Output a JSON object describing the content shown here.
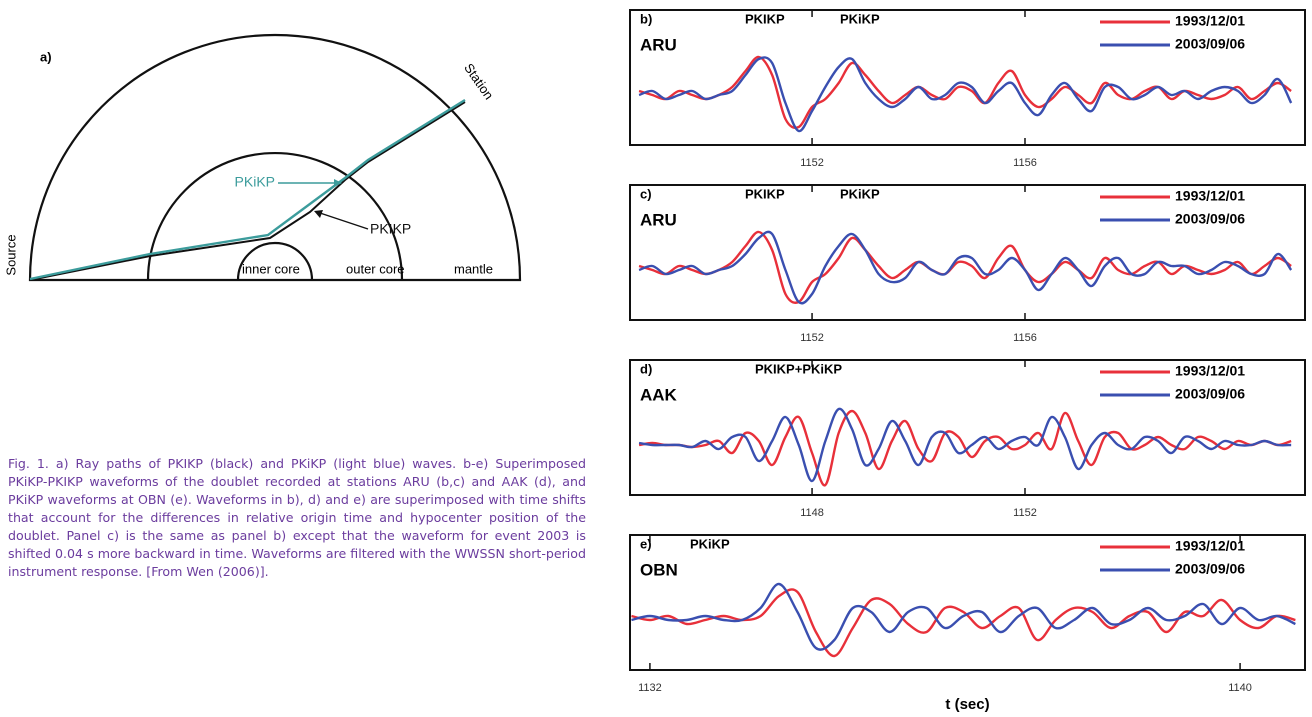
{
  "diagram": {
    "label": "a)",
    "rays": [
      "PKiKP",
      "PKIKP"
    ],
    "regions": [
      "inner core",
      "outer core",
      "mantle"
    ],
    "source": "Source",
    "station": "Station"
  },
  "caption": "Fig. 1. a) Ray paths of PKIKP (black) and PKiKP (light blue) waves. b-e) Superimposed PKiKP-PKIKP waveforms of the doublet recorded at stations ARU (b,c) and AAK (d), and PKiKP waveforms at OBN (e). Waveforms in b), d) and e) are superimposed with time shifts that account for the differences in relative origin time and hypocenter position of the doublet. Panel c) is the same as panel b) except that the waveform for event 2003 is shifted 0.04 s more backward in time. Waveforms are filtered with the WWSSN short-period instrument response. [From Wen (2006)].",
  "chart_data": [
    {
      "type": "line",
      "panel": "b)",
      "station": "ARU",
      "annotations": [
        "PKIKP",
        "PKiKP"
      ],
      "x": [
        1148.75,
        1149,
        1149.25,
        1149.5,
        1149.75,
        1150,
        1150.25,
        1150.5,
        1150.75,
        1151,
        1151.25,
        1151.5,
        1151.75,
        1152,
        1152.25,
        1152.5,
        1152.75,
        1153,
        1153.25,
        1153.5,
        1153.75,
        1154,
        1154.25,
        1154.5,
        1154.75,
        1155,
        1155.25,
        1155.5,
        1155.75,
        1156,
        1156.25,
        1156.5,
        1156.75,
        1157,
        1157.25,
        1157.5,
        1157.75,
        1158,
        1158.25,
        1158.5,
        1158.75,
        1159,
        1159.25,
        1159.5,
        1159.75,
        1160,
        1160.25,
        1160.5,
        1160.75,
        1161
      ],
      "series": [
        {
          "name": "1993/12/01",
          "color": "#e8303a",
          "values": [
            0.1,
            0.0,
            -0.1,
            0.1,
            0.0,
            -0.1,
            0.0,
            0.2,
            0.6,
            0.95,
            0.5,
            -0.6,
            -0.8,
            -0.3,
            -0.1,
            0.3,
            0.8,
            0.5,
            0.1,
            -0.2,
            0.0,
            0.2,
            0.0,
            -0.1,
            0.2,
            0.1,
            -0.2,
            0.3,
            0.6,
            0.0,
            -0.3,
            -0.1,
            0.2,
            0.0,
            -0.2,
            0.3,
            0.0,
            -0.1,
            0.1,
            0.2,
            -0.1,
            0.1,
            0.0,
            -0.1,
            0.0,
            0.2,
            -0.1,
            0.1,
            0.3,
            0.1
          ]
        },
        {
          "name": "2003/09/06",
          "color": "#3a4fb0",
          "values": [
            0.0,
            0.1,
            -0.1,
            0.0,
            0.1,
            -0.1,
            0.0,
            0.1,
            0.5,
            0.9,
            0.8,
            -0.2,
            -0.9,
            -0.4,
            0.2,
            0.7,
            0.9,
            0.3,
            -0.1,
            -0.3,
            -0.1,
            0.2,
            -0.1,
            0.0,
            0.3,
            0.2,
            -0.2,
            0.1,
            0.3,
            -0.2,
            -0.5,
            0.0,
            0.3,
            -0.1,
            -0.4,
            0.2,
            0.2,
            -0.1,
            0.0,
            0.2,
            0.0,
            0.1,
            -0.1,
            0.1,
            0.2,
            0.1,
            -0.2,
            0.0,
            0.4,
            -0.2
          ]
        }
      ],
      "xlim": [
        1148.58,
        1161.26
      ],
      "xticks": [
        1152,
        1156
      ]
    },
    {
      "type": "line",
      "panel": "c)",
      "station": "ARU",
      "annotations": [
        "PKIKP",
        "PKiKP"
      ],
      "x": [
        1148.75,
        1149,
        1149.25,
        1149.5,
        1149.75,
        1150,
        1150.25,
        1150.5,
        1150.75,
        1151,
        1151.25,
        1151.5,
        1151.75,
        1152,
        1152.25,
        1152.5,
        1152.75,
        1153,
        1153.25,
        1153.5,
        1153.75,
        1154,
        1154.25,
        1154.5,
        1154.75,
        1155,
        1155.25,
        1155.5,
        1155.75,
        1156,
        1156.25,
        1156.5,
        1156.75,
        1157,
        1157.25,
        1157.5,
        1157.75,
        1158,
        1158.25,
        1158.5,
        1158.75,
        1159,
        1159.25,
        1159.5,
        1159.75,
        1160,
        1160.25,
        1160.5,
        1160.75,
        1161
      ],
      "series": [
        {
          "name": "1993/12/01",
          "color": "#e8303a",
          "values": [
            0.1,
            0.0,
            -0.1,
            0.1,
            0.0,
            -0.1,
            0.0,
            0.2,
            0.6,
            0.95,
            0.5,
            -0.6,
            -0.8,
            -0.3,
            -0.1,
            0.3,
            0.8,
            0.5,
            0.1,
            -0.2,
            0.0,
            0.2,
            0.0,
            -0.1,
            0.2,
            0.1,
            -0.2,
            0.3,
            0.6,
            0.0,
            -0.3,
            -0.1,
            0.2,
            0.0,
            -0.2,
            0.3,
            0.0,
            -0.1,
            0.1,
            0.2,
            -0.1,
            0.1,
            0.0,
            -0.1,
            0.0,
            0.2,
            -0.1,
            0.1,
            0.3,
            0.1
          ]
        },
        {
          "name": "2003/09/06",
          "color": "#3a4fb0",
          "values": [
            0.0,
            0.1,
            -0.1,
            0.0,
            0.1,
            -0.1,
            0.0,
            0.1,
            0.4,
            0.8,
            0.9,
            0.0,
            -0.8,
            -0.6,
            0.1,
            0.6,
            0.9,
            0.5,
            -0.1,
            -0.3,
            -0.2,
            0.2,
            0.0,
            -0.1,
            0.3,
            0.3,
            -0.1,
            0.0,
            0.3,
            0.0,
            -0.5,
            -0.1,
            0.3,
            0.0,
            -0.4,
            0.1,
            0.3,
            -0.1,
            -0.1,
            0.2,
            0.1,
            0.1,
            -0.1,
            0.0,
            0.2,
            0.1,
            -0.1,
            -0.1,
            0.4,
            0.0
          ]
        }
      ],
      "xlim": [
        1148.58,
        1161.26
      ],
      "xticks": [
        1152,
        1156
      ]
    },
    {
      "type": "line",
      "panel": "d)",
      "station": "AAK",
      "annotations": [
        "PKIKP+PKiKP"
      ],
      "x": [
        1144.75,
        1145,
        1145.25,
        1145.5,
        1145.75,
        1146,
        1146.25,
        1146.5,
        1146.75,
        1147,
        1147.25,
        1147.5,
        1147.75,
        1148,
        1148.25,
        1148.5,
        1148.75,
        1149,
        1149.25,
        1149.5,
        1149.75,
        1150,
        1150.25,
        1150.5,
        1150.75,
        1151,
        1151.25,
        1151.5,
        1151.75,
        1152,
        1152.25,
        1152.5,
        1152.75,
        1153,
        1153.25,
        1153.5,
        1153.75,
        1154,
        1154.25,
        1154.5,
        1154.75,
        1155,
        1155.25,
        1155.5,
        1155.75,
        1156,
        1156.25,
        1156.5,
        1156.75,
        1157
      ],
      "series": [
        {
          "name": "1993/12/01",
          "color": "#e8303a",
          "values": [
            0.0,
            0.05,
            0.0,
            0.0,
            -0.05,
            0.0,
            0.1,
            -0.2,
            0.3,
            0.1,
            -0.5,
            0.2,
            0.7,
            -0.2,
            -1.0,
            0.3,
            0.85,
            0.3,
            -0.6,
            0.1,
            0.6,
            -0.1,
            -0.4,
            0.3,
            0.2,
            -0.3,
            0.1,
            0.2,
            -0.1,
            0.0,
            0.3,
            -0.1,
            0.8,
            0.1,
            -0.5,
            0.2,
            0.3,
            -0.1,
            0.0,
            0.2,
            0.0,
            -0.1,
            0.2,
            0.1,
            -0.1,
            0.1,
            0.0,
            0.1,
            0.0,
            0.1
          ]
        },
        {
          "name": "2003/09/06",
          "color": "#3a4fb0",
          "values": [
            0.05,
            0.0,
            0.0,
            0.0,
            -0.05,
            0.1,
            -0.1,
            0.2,
            0.2,
            -0.4,
            0.1,
            0.7,
            0.0,
            -0.9,
            0.1,
            0.9,
            0.4,
            -0.5,
            -0.1,
            0.6,
            0.1,
            -0.5,
            0.2,
            0.3,
            -0.2,
            0.0,
            0.2,
            -0.1,
            0.1,
            0.2,
            0.0,
            0.7,
            0.2,
            -0.6,
            0.0,
            0.3,
            0.0,
            -0.1,
            0.2,
            0.1,
            -0.2,
            0.2,
            0.1,
            -0.1,
            0.1,
            0.0,
            0.0,
            0.1,
            0.0,
            0.0
          ]
        }
      ],
      "xlim": [
        1144.58,
        1157.26
      ],
      "xticks": [
        1148,
        1152
      ]
    },
    {
      "type": "line",
      "panel": "e)",
      "station": "OBN",
      "annotations": [
        "PKiKP"
      ],
      "xlabel": "t (sec)",
      "x": [
        1131.75,
        1132,
        1132.25,
        1132.5,
        1132.75,
        1133,
        1133.25,
        1133.5,
        1133.75,
        1134,
        1134.25,
        1134.5,
        1134.75,
        1135,
        1135.25,
        1135.5,
        1135.75,
        1136,
        1136.25,
        1136.5,
        1136.75,
        1137,
        1137.25,
        1137.5,
        1137.75,
        1138,
        1138.25,
        1138.5,
        1138.75,
        1139,
        1139.25,
        1139.5,
        1139.75,
        1140,
        1140.25,
        1140.5,
        1140.75
      ],
      "series": [
        {
          "name": "1993/12/01",
          "color": "#e8303a",
          "values": [
            0.1,
            0.0,
            0.1,
            -0.1,
            0.0,
            0.1,
            0.0,
            0.1,
            0.6,
            0.7,
            -0.3,
            -0.9,
            -0.2,
            0.5,
            0.4,
            -0.1,
            -0.3,
            0.3,
            0.2,
            -0.2,
            0.1,
            0.3,
            -0.5,
            0.0,
            0.3,
            0.2,
            -0.2,
            0.1,
            0.2,
            -0.3,
            0.2,
            0.1,
            0.5,
            0.0,
            -0.2,
            0.1,
            0.0
          ]
        },
        {
          "name": "2003/09/06",
          "color": "#3a4fb0",
          "values": [
            0.0,
            0.1,
            0.0,
            0.0,
            0.1,
            0.0,
            0.0,
            0.3,
            0.9,
            0.2,
            -0.7,
            -0.5,
            0.3,
            0.2,
            -0.3,
            0.2,
            0.3,
            -0.2,
            0.1,
            0.2,
            -0.3,
            0.1,
            0.3,
            -0.2,
            0.0,
            0.3,
            -0.1,
            0.0,
            0.3,
            0.0,
            0.1,
            0.4,
            -0.1,
            0.3,
            0.0,
            0.1,
            -0.1
          ]
        }
      ],
      "xlim": [
        1131.73,
        1140.88
      ],
      "xticks": [
        1132,
        1140
      ]
    }
  ]
}
